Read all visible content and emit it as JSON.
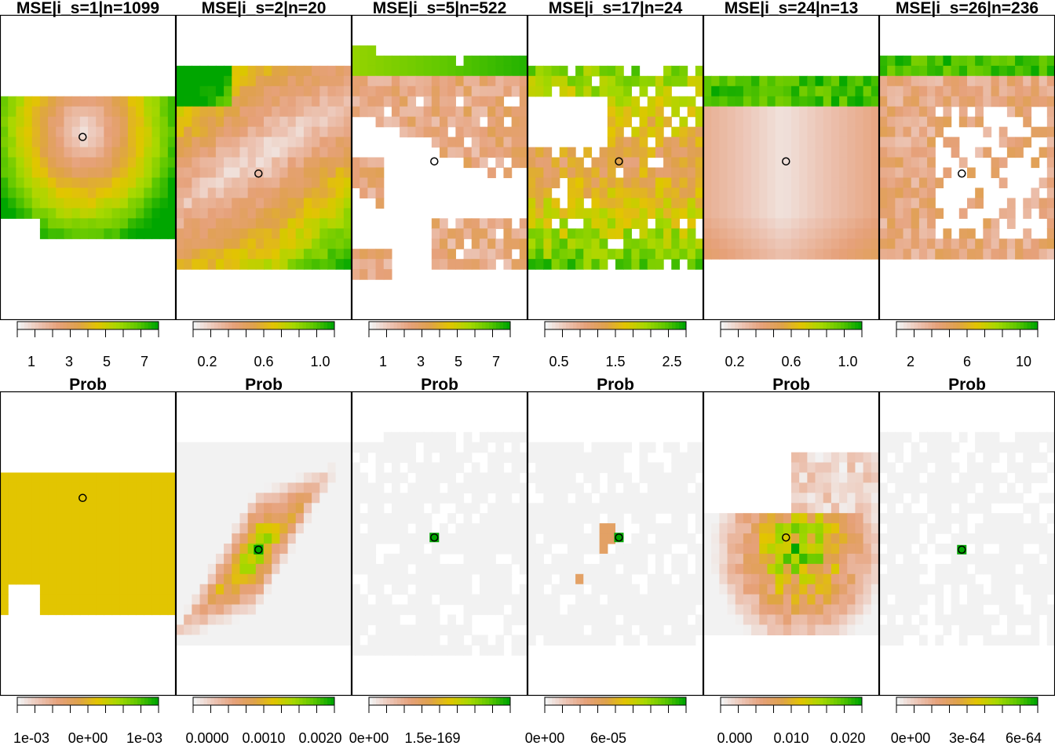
{
  "colors": {
    "ramp": [
      "#f2f2f2",
      "#ecc4b4",
      "#e6a17a",
      "#dfa14c",
      "#e2c500",
      "#a8d800",
      "#60c800",
      "#00a600"
    ],
    "background": "#ffffff",
    "missing": "#ffffff"
  },
  "chart_data": {
    "type": "heatmap",
    "layout": "2 rows x 6 columns of raster maps, each with a horizontal color-bar legend below",
    "grid": false,
    "legend_placement": "bottom",
    "panels": [
      {
        "row": 1,
        "col": 1,
        "title": "MSE|i_s=1|n=1099",
        "legend_title": "Prob",
        "ticks": [
          "1",
          "3",
          "5",
          "7"
        ],
        "range": [
          0,
          8
        ],
        "point": [
          0.47,
          0.4
        ]
      },
      {
        "row": 1,
        "col": 2,
        "title": "MSE|i_s=2|n=20",
        "legend_title": "Prob",
        "ticks": [
          "0.2",
          "0.6",
          "1.0"
        ],
        "range": [
          0,
          1.25
        ],
        "point": [
          0.47,
          0.52
        ]
      },
      {
        "row": 1,
        "col": 3,
        "title": "MSE|i_s=5|n=522",
        "legend_title": "Prob",
        "ticks": [
          "1",
          "3",
          "5",
          "7"
        ],
        "range": [
          0,
          8
        ],
        "point": [
          0.47,
          0.48
        ]
      },
      {
        "row": 1,
        "col": 4,
        "title": "MSE|i_s=17|n=24",
        "legend_title": "Prob",
        "ticks": [
          "0.5",
          "1.5",
          "2.5"
        ],
        "range": [
          0,
          3.3
        ],
        "point": [
          0.52,
          0.48
        ]
      },
      {
        "row": 1,
        "col": 5,
        "title": "MSE|i_s=24|n=13",
        "legend_title": "Prob",
        "ticks": [
          "0.2",
          "0.6",
          "1.0"
        ],
        "range": [
          0,
          1.5
        ],
        "point": [
          0.47,
          0.48
        ]
      },
      {
        "row": 1,
        "col": 6,
        "title": "MSE|i_s=26|n=236",
        "legend_title": "Prob",
        "ticks": [
          "2",
          "6",
          "10"
        ],
        "range": [
          0,
          14
        ],
        "point": [
          0.47,
          0.52
        ]
      },
      {
        "row": 2,
        "col": 1,
        "title": "",
        "legend_title": "",
        "ticks": [
          "1e-03",
          "0e+00",
          "1e-03"
        ],
        "range": [
          -0.001,
          0.001
        ],
        "point": [
          0.47,
          0.35
        ]
      },
      {
        "row": 2,
        "col": 2,
        "title": "",
        "legend_title": "",
        "ticks": [
          "0.0000",
          "0.0010",
          "0.0020"
        ],
        "range": [
          0,
          0.0022
        ],
        "point": [
          0.47,
          0.52
        ]
      },
      {
        "row": 2,
        "col": 3,
        "title": "",
        "legend_title": "",
        "ticks": [
          "0e+00",
          "1.5e-169"
        ],
        "range": [
          0,
          2.2e-169
        ],
        "point": [
          0.47,
          0.48
        ]
      },
      {
        "row": 2,
        "col": 4,
        "title": "",
        "legend_title": "",
        "ticks": [
          "0e+00",
          "6e-05"
        ],
        "range": [
          0,
          0.0001
        ],
        "point": [
          0.52,
          0.48
        ]
      },
      {
        "row": 2,
        "col": 5,
        "title": "",
        "legend_title": "",
        "ticks": [
          "0.000",
          "0.010",
          "0.020"
        ],
        "range": [
          0,
          0.023
        ],
        "point": [
          0.47,
          0.48
        ]
      },
      {
        "row": 2,
        "col": 6,
        "title": "",
        "legend_title": "",
        "ticks": [
          "0e+00",
          "3e-64",
          "6e-64"
        ],
        "range": [
          0,
          7.2e-64
        ],
        "point": [
          0.47,
          0.52
        ]
      }
    ]
  }
}
